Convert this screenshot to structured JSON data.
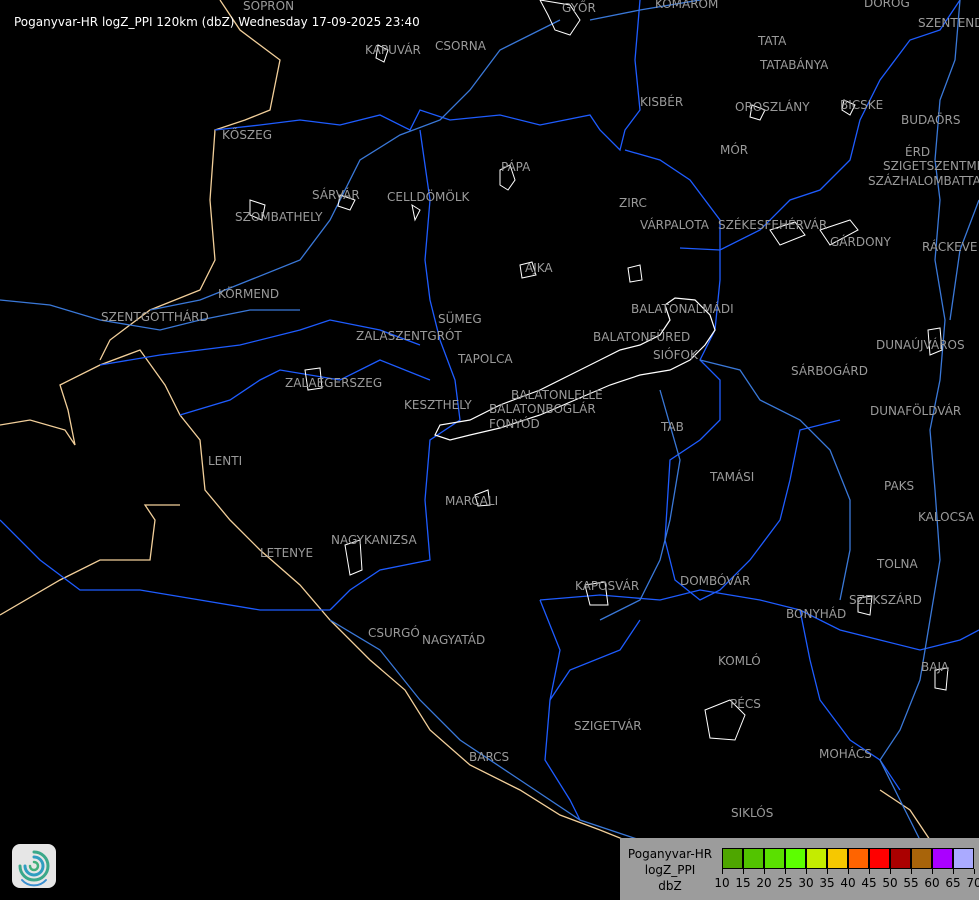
{
  "title": "Poganyvar-HR logZ_PPI 120km (dbZ) Wednesday 17-09-2025 23:40",
  "colors": {
    "background": "#000000",
    "border": "#1e5cff",
    "river": "#3a78d8",
    "country_border": "#f2cf9a",
    "city_outline": "#ffffff",
    "label": "#9a9a9a"
  },
  "cities": [
    "SOPRON",
    "GYŐR",
    "KOMÁROM",
    "DOROG",
    "SZENTENDRE",
    "KAPUVÁR",
    "CSORNA",
    "TATA",
    "TATABÁNYA",
    "KISBÉR",
    "OROSZLÁNY",
    "BICSKE",
    "BUDAÖRS",
    "ÉRD",
    "SZIGETSZENTMIKLÓS",
    "SZÁZHALOMBATTA",
    "KŐSZEG",
    "PÁPA",
    "SZOMBATHELY",
    "SÁRVÁR",
    "CELLDÖMÖLK",
    "MÓR",
    "ZIRC",
    "VÁRPALOTA",
    "SZÉKESFEHÉRVÁR",
    "GÁRDONY",
    "RÁCKEVE",
    "AJKA",
    "KÖRMEND",
    "SZENTGOTTHÁRD",
    "BALATONALMÁDI",
    "SÜMEG",
    "ZALASZENTGRÓT",
    "BALATONFÜRED",
    "SIÓFOK",
    "DUNAÚJVÁROS",
    "TAPOLCA",
    "ZALAEGERSZEG",
    "SÁRBOGÁRD",
    "KESZTHELY",
    "BALATONLELLE",
    "BALATONBOGLÁR",
    "FONYÓD",
    "DUNAFÖLDVÁR",
    "TAB",
    "LENTI",
    "TAMÁSI",
    "PAKS",
    "MARCALI",
    "KALOCSA",
    "LETENYE",
    "NAGYKANIZSA",
    "TOLNA",
    "KAPOSVÁR",
    "DOMBÓVÁR",
    "SZEKSZÁRD",
    "BONYHÁD",
    "CSURGÓ",
    "NAGYATÁD",
    "KOMLÓ",
    "BAJA",
    "PÉCS",
    "SZIGETVÁR",
    "MOHÁCS",
    "BARCS",
    "SIKLÓS"
  ],
  "legend": {
    "lines": [
      "Poganyvar-HR",
      "logZ_PPI",
      "dbZ"
    ],
    "colors": [
      "#4ea600",
      "#52c400",
      "#5ae000",
      "#5cff00",
      "#c4ec00",
      "#f6c800",
      "#ff6400",
      "#ff0000",
      "#aa0000",
      "#a8640a",
      "#aa00ff",
      "#aaaaff"
    ],
    "ticks": [
      "10",
      "15",
      "20",
      "25",
      "30",
      "35",
      "40",
      "45",
      "50",
      "55",
      "60",
      "65",
      "70"
    ]
  },
  "logo_icon": "swirl-logo-icon"
}
